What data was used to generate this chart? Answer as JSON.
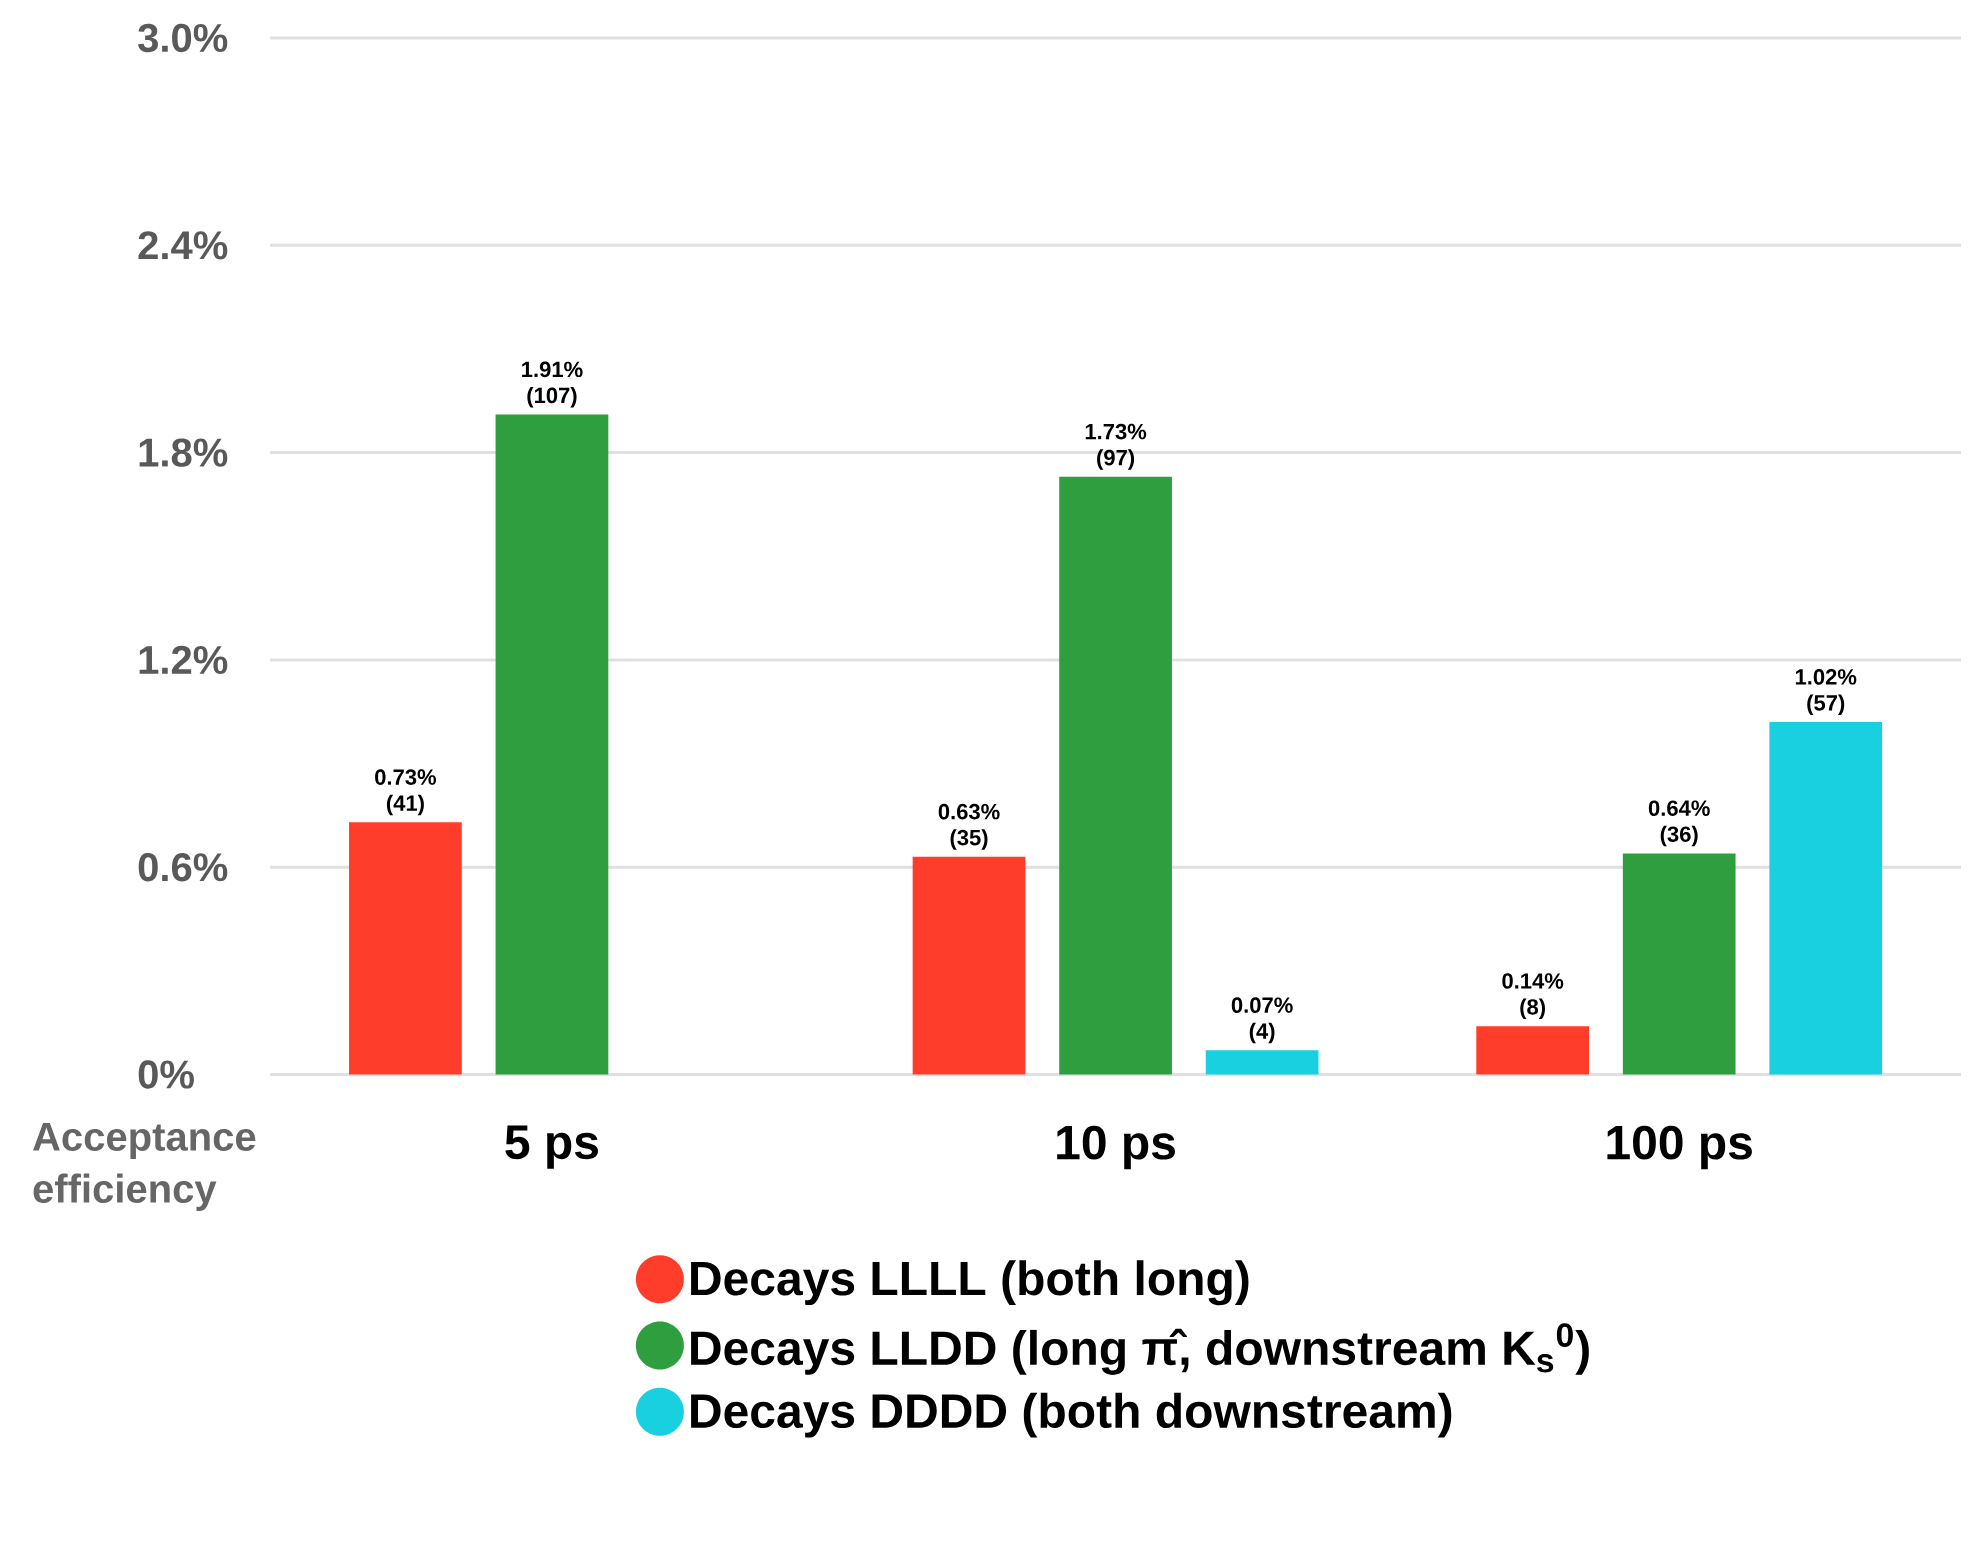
{
  "chart_data": {
    "type": "bar",
    "ylabel": "Acceptance efficiency",
    "categories": [
      "5 ps",
      "10 ps",
      "100 ps"
    ],
    "series": [
      {
        "name": "Decays LLLL (both long)",
        "color": "#ff3d2a",
        "values": [
          0.73,
          0.63,
          0.14
        ],
        "value_labels": [
          "0.73%\n(41)",
          "0.63%\n(35)",
          "0.14%\n(8)"
        ]
      },
      {
        "name": "Decays LLDD (long π̂, downstream K$_{s}$$^{0}$)",
        "color": "#2e9e3e",
        "values": [
          1.91,
          1.73,
          0.64
        ],
        "value_labels": [
          "1.91%\n(107)",
          "1.73%\n(97)",
          "0.64%\n(36)"
        ]
      },
      {
        "name": "Decays DDDD (both downstream)",
        "color": "#19d0e0",
        "values": [
          null,
          0.07,
          1.02
        ],
        "value_labels": [
          null,
          "0.07%\n(4)",
          "1.02%\n(57)"
        ]
      }
    ],
    "ylim": [
      0,
      3.0
    ],
    "yticks": [
      {
        "value": 0,
        "label": "0%"
      },
      {
        "value": 0.6,
        "label": "0.6%"
      },
      {
        "value": 1.2,
        "label": "1.2%"
      },
      {
        "value": 1.8,
        "label": "1.8%"
      },
      {
        "value": 2.4,
        "label": "2.4%"
      },
      {
        "value": 3.0,
        "label": "3.0%"
      }
    ],
    "grid": "y",
    "legend": "bottom"
  }
}
